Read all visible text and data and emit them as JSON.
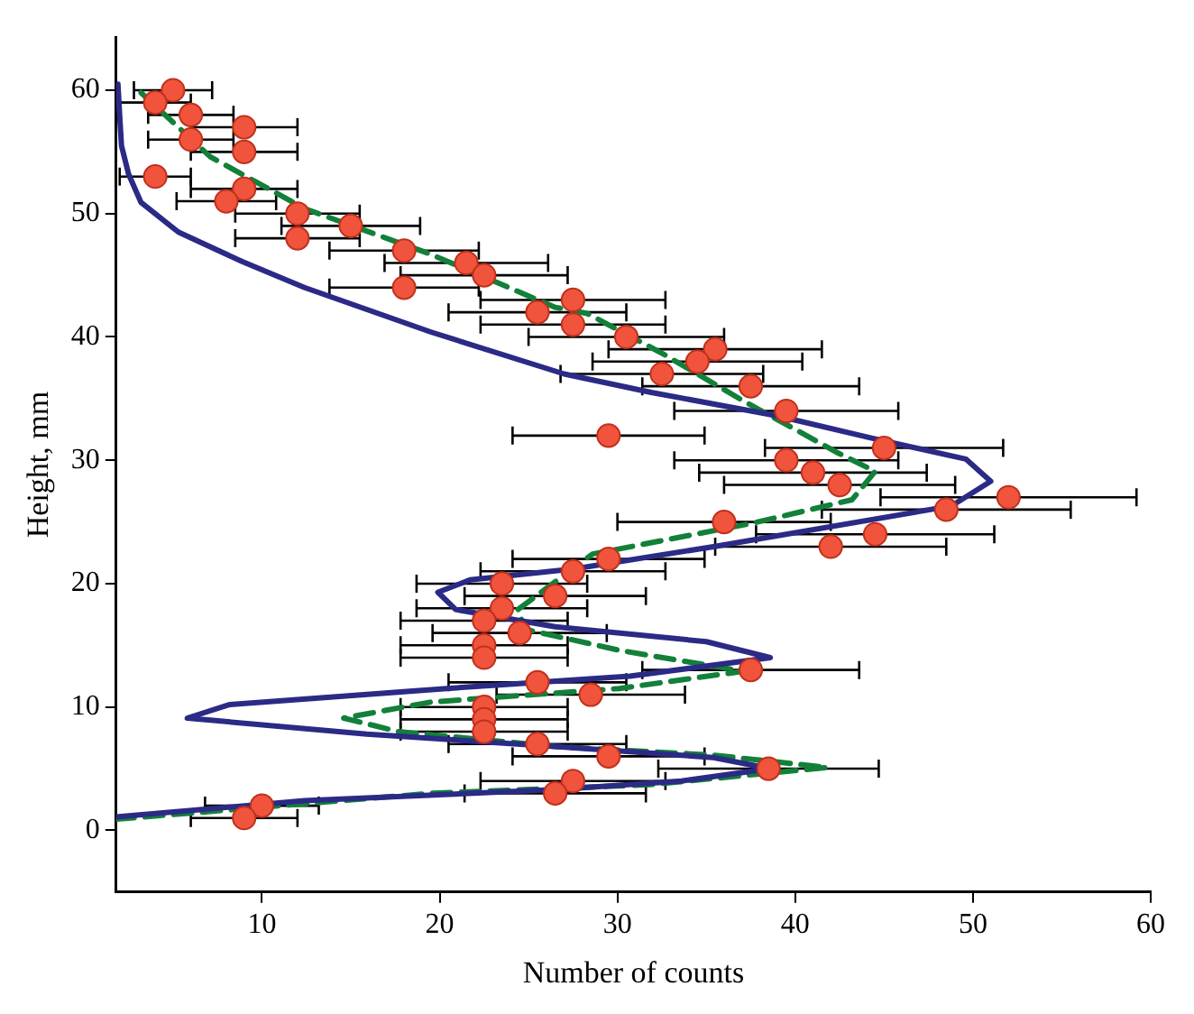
{
  "chart_data": {
    "type": "scatter",
    "xlabel": "Number of counts",
    "ylabel": "Height, mm",
    "xlim": [
      1.8,
      60
    ],
    "ylim": [
      -5,
      64.3
    ],
    "xticks": [
      10,
      20,
      30,
      40,
      50,
      60
    ],
    "yticks": [
      0,
      10,
      20,
      30,
      40,
      50,
      60
    ],
    "grid": false,
    "legend": false,
    "series": [
      {
        "type": "scatter",
        "color": "#f0543c",
        "marker": "circle",
        "x": [
          5,
          4,
          6,
          9,
          6,
          9,
          4,
          9,
          8,
          12,
          15,
          12,
          18,
          21.5,
          22.5,
          18,
          27.5,
          25.5,
          27.5,
          30.5,
          35.5,
          34.5,
          32.5,
          37.5,
          39.5,
          29.5,
          45,
          39.5,
          41,
          42.5,
          52,
          48.5,
          36,
          44.5,
          42,
          29.5,
          27.5,
          23.5,
          26.5,
          23.5,
          22.5,
          24.5,
          22.5,
          22.5,
          37.5,
          25.5,
          28.5,
          22.5,
          22.5,
          22.5,
          25.5,
          29.5,
          38.5,
          27.5,
          26.5,
          10,
          9
        ],
        "values": [
          60,
          59,
          58,
          57,
          56,
          55,
          53,
          52,
          51,
          50,
          49,
          48,
          47,
          46,
          45,
          44,
          43,
          42,
          41,
          40,
          39,
          38,
          37,
          36,
          34,
          32,
          31,
          30,
          29,
          28,
          27,
          26,
          25,
          24,
          23,
          22,
          21,
          20,
          19,
          18,
          17,
          16,
          15,
          14,
          13,
          12,
          11,
          10,
          9,
          8,
          7,
          6,
          5,
          4,
          3,
          2,
          1
        ],
        "xerrors": [
          2.2,
          2,
          2.4,
          3,
          2.4,
          3,
          2,
          3,
          2.8,
          3.5,
          3.9,
          3.5,
          4.2,
          4.6,
          4.7,
          4.2,
          5.2,
          5,
          5.2,
          5.5,
          6,
          5.9,
          5.7,
          6.1,
          6.3,
          5.4,
          6.7,
          6.3,
          6.4,
          6.5,
          7.2,
          7,
          6,
          6.7,
          6.5,
          5.4,
          5.2,
          4.8,
          5.1,
          4.8,
          4.7,
          4.9,
          4.7,
          4.7,
          6.1,
          5,
          5.3,
          4.7,
          4.7,
          4.7,
          5,
          5.4,
          6.2,
          5.2,
          5.1,
          3.2,
          3
        ]
      },
      {
        "type": "line",
        "color": "#2b2a86",
        "line_style": "solid",
        "marker": "none",
        "x": [
          1.8,
          12.4,
          26.5,
          33.6,
          38.6,
          35.4,
          26.5,
          15.9,
          5.8,
          8.2,
          20.4,
          30.7,
          38.6,
          35,
          26.5,
          20.9,
          19.9,
          21.7,
          27.6,
          35.4,
          48.8,
          51,
          49.6,
          44.3,
          39,
          31.9,
          27,
          19.5,
          12.4,
          8.9,
          5.3,
          3.2,
          2.5,
          2.1,
          2,
          1.9
        ],
        "values": [
          1.1,
          2.4,
          3.3,
          4,
          5,
          5.9,
          6.8,
          7.8,
          9.1,
          10.2,
          11.5,
          12.5,
          14,
          15.3,
          16.5,
          17.9,
          19.3,
          20.3,
          21.2,
          23,
          26.3,
          28.3,
          30.1,
          31.8,
          33.6,
          35.5,
          37,
          40.4,
          44,
          46.1,
          48.5,
          50.9,
          53.2,
          55.5,
          57.9,
          60.5
        ]
      },
      {
        "type": "line",
        "color": "#13803a",
        "line_style": "dashed",
        "marker": "none",
        "x": [
          1.8,
          19.5,
          31.8,
          41.8,
          35.4,
          26.5,
          17.7,
          14.6,
          19.5,
          30.1,
          37.1,
          30.1,
          24.8,
          24.4,
          28.6,
          37.6,
          43.2,
          44.5,
          42.4,
          37.1,
          32.6,
          28.3,
          26.5,
          19.5,
          12.4,
          7.1,
          3.2
        ],
        "values": [
          0.9,
          3,
          3.7,
          5.1,
          6.1,
          6.8,
          8,
          9.1,
          10.4,
          11.5,
          12.9,
          14.6,
          16.3,
          17.9,
          22.4,
          24.9,
          26.8,
          29.1,
          30.6,
          34.8,
          38.6,
          41.9,
          42.4,
          46.7,
          50.4,
          54.6,
          59.8
        ]
      }
    ]
  }
}
